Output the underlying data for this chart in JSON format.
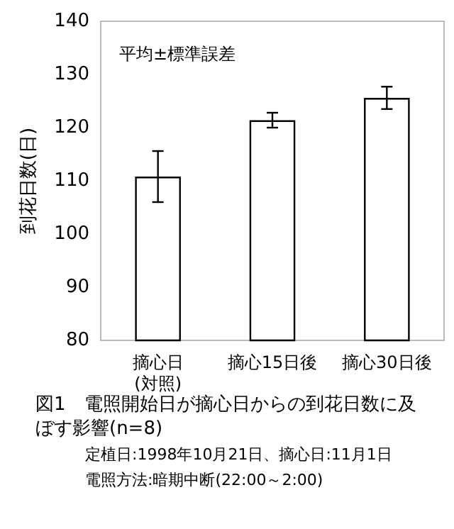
{
  "chart_data": {
    "type": "bar",
    "title": "図1　電照開始日が摘心日からの到花日数に及ぼす影響(n=8)",
    "ylabel": "到花日数(日)",
    "categories": [
      "摘心日\n(対照)",
      "摘心15日後",
      "摘心30日後"
    ],
    "values": [
      110.8,
      121.4,
      125.6
    ],
    "errors": [
      4.8,
      1.4,
      2.1
    ],
    "color": "#ffffff",
    "ylim": [
      80,
      140
    ],
    "yticks": [
      80,
      90,
      100,
      110,
      120,
      130,
      140
    ],
    "grid": false,
    "annotations": [
      "平均±標準誤差",
      "定植日:1998年10月21日、摘心日:11月1日",
      "電照方法:暗期中断(22:00～2:00)"
    ]
  }
}
